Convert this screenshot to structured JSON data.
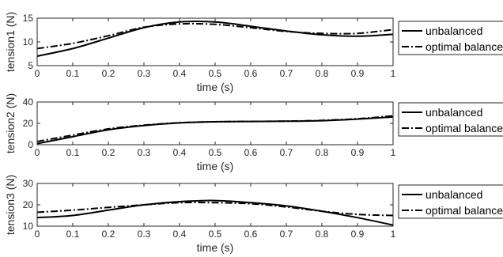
{
  "chart_data": [
    {
      "type": "line",
      "xlabel": "time (s)",
      "ylabel": "tension1 (N)",
      "xlim": [
        0,
        1
      ],
      "ylim": [
        5,
        15
      ],
      "xticks": [
        "0",
        "0.1",
        "0.2",
        "0.3",
        "0.4",
        "0.5",
        "0.6",
        "0.7",
        "0.8",
        "0.9",
        "1"
      ],
      "yticks": [
        "5",
        "10",
        "15"
      ],
      "legend_position": "outside-right",
      "x": [
        0,
        0.1,
        0.2,
        0.3,
        0.4,
        0.5,
        0.6,
        0.7,
        0.8,
        0.9,
        1
      ],
      "series": [
        {
          "name": "unbalanced",
          "style": "solid",
          "values": [
            7.0,
            8.6,
            10.8,
            13.0,
            14.2,
            14.2,
            13.3,
            12.3,
            11.5,
            11.2,
            11.6
          ]
        },
        {
          "name": "optimal balanced",
          "style": "dashdot",
          "values": [
            8.6,
            9.7,
            11.3,
            13.1,
            13.8,
            13.7,
            13.0,
            12.2,
            11.8,
            11.8,
            12.6
          ]
        }
      ]
    },
    {
      "type": "line",
      "xlabel": "time (s)",
      "ylabel": "tension2 (N)",
      "xlim": [
        0,
        1
      ],
      "ylim": [
        0,
        40
      ],
      "xticks": [
        "0",
        "0.1",
        "0.2",
        "0.3",
        "0.4",
        "0.5",
        "0.6",
        "0.7",
        "0.8",
        "0.9",
        "1"
      ],
      "yticks": [
        "0",
        "20",
        "40"
      ],
      "legend_position": "outside-right",
      "x": [
        0,
        0.1,
        0.2,
        0.3,
        0.4,
        0.5,
        0.6,
        0.7,
        0.8,
        0.9,
        1
      ],
      "series": [
        {
          "name": "unbalanced",
          "style": "solid",
          "values": [
            1.0,
            7.5,
            14.0,
            18.0,
            20.5,
            21.5,
            21.8,
            22.0,
            22.5,
            24.0,
            26.0
          ]
        },
        {
          "name": "optimal balanced",
          "style": "dashdot",
          "values": [
            3.0,
            9.0,
            14.8,
            18.3,
            20.6,
            21.5,
            21.8,
            22.1,
            22.8,
            24.3,
            27.0
          ]
        }
      ]
    },
    {
      "type": "line",
      "xlabel": "time (s)",
      "ylabel": "tension3 (N)",
      "xlim": [
        0,
        1
      ],
      "ylim": [
        10,
        30
      ],
      "xticks": [
        "0",
        "0.1",
        "0.2",
        "0.3",
        "0.4",
        "0.5",
        "0.6",
        "0.7",
        "0.8",
        "0.9",
        "1"
      ],
      "yticks": [
        "10",
        "20",
        "30"
      ],
      "legend_position": "outside-right",
      "x": [
        0,
        0.1,
        0.2,
        0.3,
        0.4,
        0.5,
        0.6,
        0.7,
        0.8,
        0.9,
        1
      ],
      "series": [
        {
          "name": "unbalanced",
          "style": "solid",
          "values": [
            14.0,
            15.0,
            17.5,
            20.0,
            21.5,
            22.0,
            21.0,
            19.5,
            17.0,
            14.0,
            10.5
          ]
        },
        {
          "name": "optimal balanced",
          "style": "dashdot",
          "values": [
            16.5,
            17.5,
            18.8,
            20.0,
            21.0,
            21.0,
            20.5,
            19.0,
            17.0,
            15.5,
            15.0
          ]
        }
      ]
    }
  ]
}
